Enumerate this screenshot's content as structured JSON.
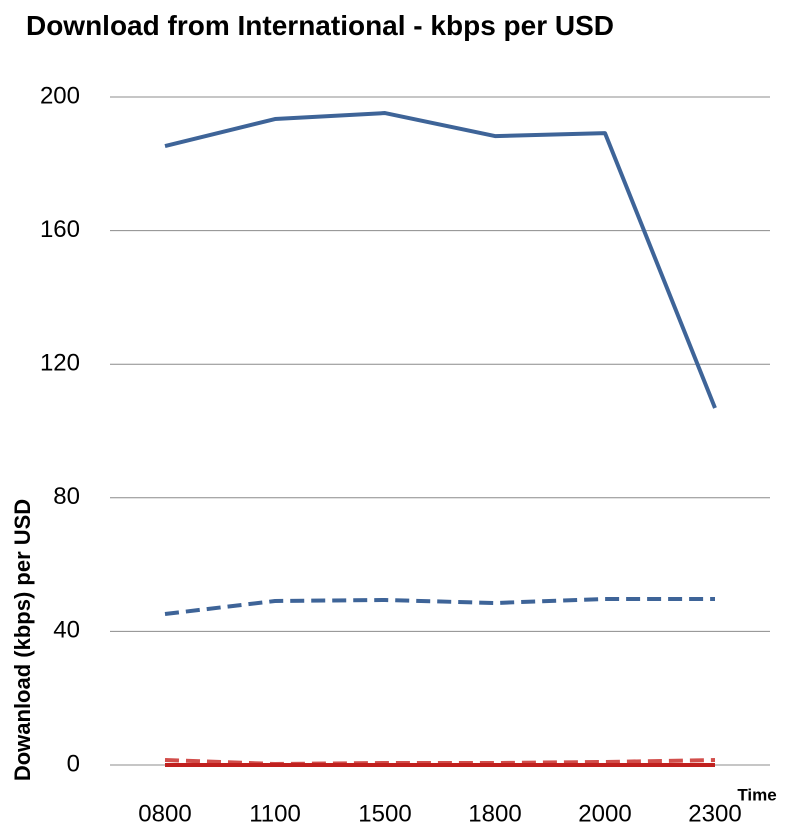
{
  "chart_data": {
    "type": "line",
    "title": "Download from International - kbps per USD",
    "y_label": "Dowanload (kbps) per USD",
    "x_label": "Time",
    "categories": [
      "0800",
      "1100",
      "1500",
      "1800",
      "2000",
      "2300"
    ],
    "series": [
      {
        "color": "#3e6498",
        "dashed": false,
        "values": [
          185.3,
          193.4,
          195.2,
          188.3,
          189.2,
          106.9
        ]
      },
      {
        "color": "#3e6498",
        "dashed": true,
        "values": [
          45.2,
          49.1,
          49.4,
          48.5,
          49.7,
          49.7
        ]
      },
      {
        "color": "#d24e4b",
        "dashed": true,
        "values": [
          1.5,
          0.3,
          0.6,
          0.6,
          0.9,
          1.5
        ]
      },
      {
        "color": "#c0201e",
        "dashed": false,
        "values": [
          0,
          0,
          0,
          0,
          0,
          0
        ]
      }
    ],
    "ylim": [
      0,
      200
    ],
    "yticks": [
      0,
      40,
      80,
      120,
      160,
      200
    ],
    "grid": true
  }
}
